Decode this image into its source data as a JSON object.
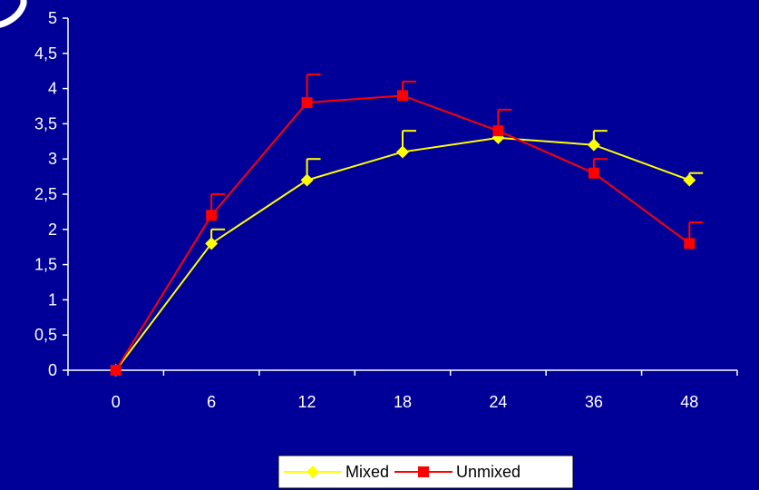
{
  "chart_data": {
    "type": "line",
    "title": "",
    "xlabel": "",
    "ylabel": "",
    "categories": [
      "0",
      "6",
      "12",
      "18",
      "24",
      "36",
      "48"
    ],
    "y_ticks": [
      "0",
      "0,5",
      "1",
      "1,5",
      "2",
      "2,5",
      "3",
      "3,5",
      "4",
      "4,5",
      "5"
    ],
    "ylim": [
      0,
      5
    ],
    "grid": false,
    "legend_position": "bottom-center",
    "series": [
      {
        "name": "Mixed",
        "color": "#ffff00",
        "marker": "diamond",
        "values": [
          0,
          1.8,
          2.7,
          3.1,
          3.3,
          3.2,
          2.7
        ],
        "error_upper": [
          0,
          2.0,
          3.0,
          3.4,
          3.3,
          3.4,
          2.8
        ]
      },
      {
        "name": "Unmixed",
        "color": "#ff0000",
        "marker": "square",
        "values": [
          0,
          2.2,
          3.8,
          3.9,
          3.4,
          2.8,
          1.8
        ],
        "error_upper": [
          0,
          2.5,
          4.2,
          4.1,
          3.7,
          3.0,
          2.1
        ]
      }
    ]
  }
}
